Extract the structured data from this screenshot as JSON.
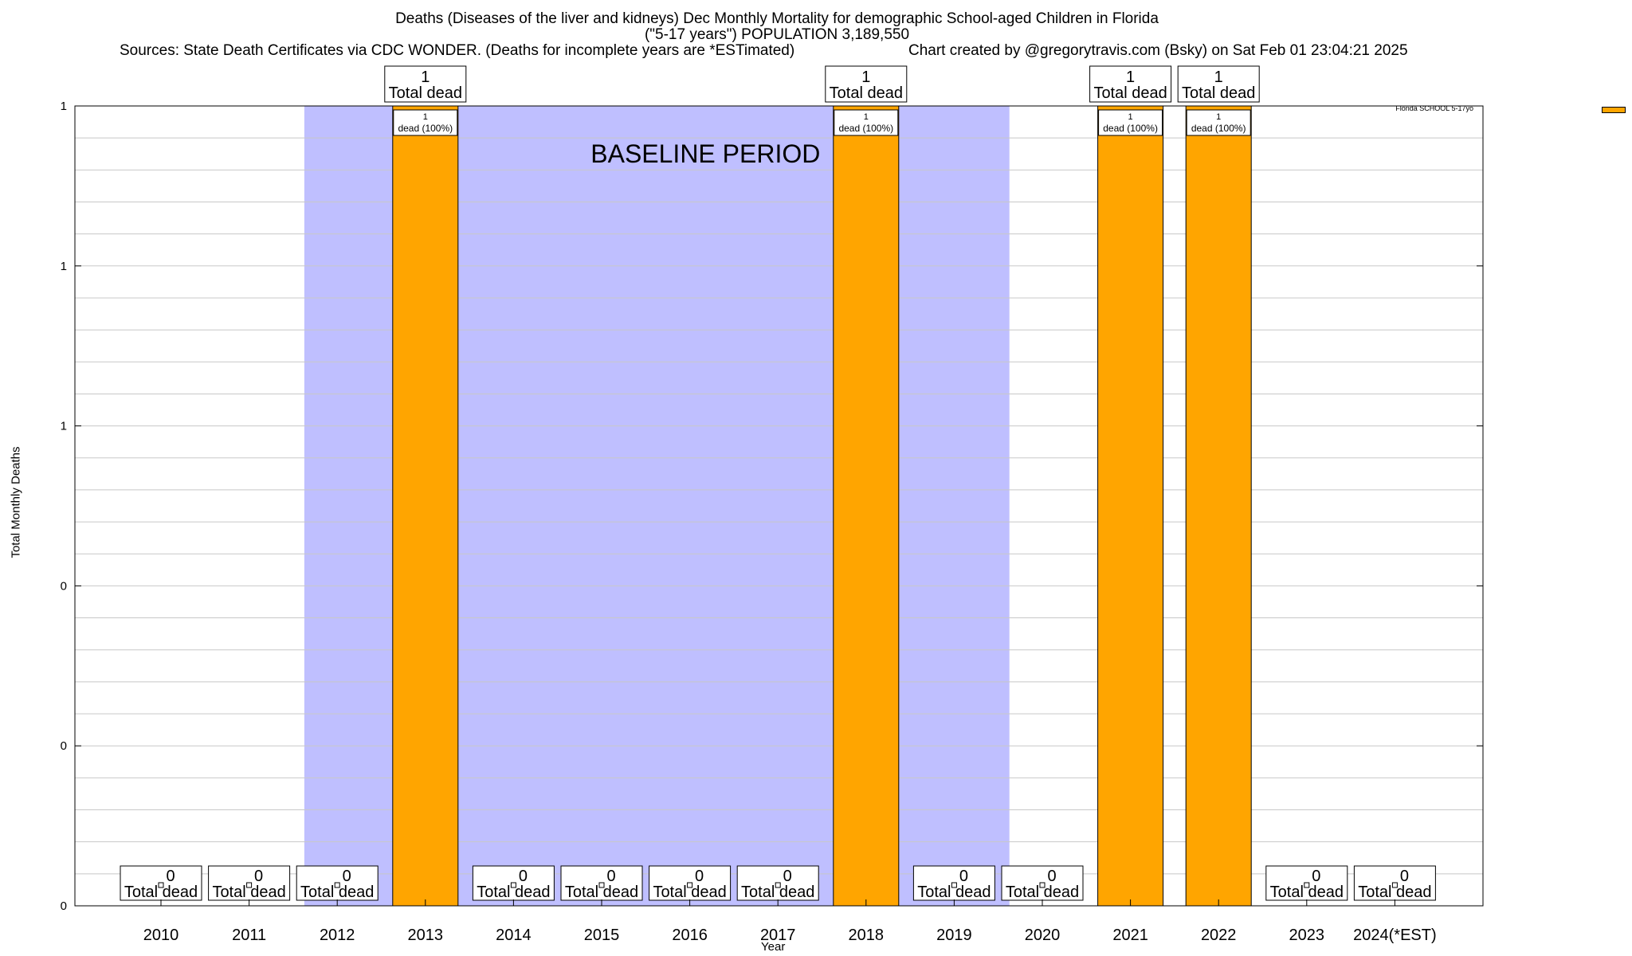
{
  "title": {
    "line1": "Deaths (Diseases of the liver and kidneys) Dec Monthly Mortality for demographic School-aged Children in Florida",
    "line2": "(\"5-17 years\") POPULATION 3,189,550",
    "sources": "Sources: State Death Certificates via CDC WONDER. (Deaths for incomplete years are *ESTimated)",
    "credit": "Chart created by @gregorytravis.com (Bsky) on Sat Feb 01 23:04:21 2025"
  },
  "chart_data": {
    "type": "bar",
    "xlabel": "Year",
    "ylabel": "Total Monthly Deaths",
    "ylim": [
      0,
      1
    ],
    "y_tick_labels": [
      "0",
      "0",
      "0",
      "1",
      "1",
      "1"
    ],
    "grid": true,
    "legend_position": "top-right",
    "categories": [
      "2010",
      "2011",
      "2012",
      "2013",
      "2014",
      "2015",
      "2016",
      "2017",
      "2018",
      "2019",
      "2020",
      "2021",
      "2022",
      "2023",
      "2024(*EST)"
    ],
    "series": [
      {
        "name": "Florida SCHOOL 5-17yo",
        "color": "#ffa500",
        "values": [
          0,
          0,
          0,
          1,
          0,
          0,
          0,
          0,
          1,
          0,
          0,
          1,
          1,
          0,
          0
        ]
      }
    ],
    "total_label_suffix": "Total dead",
    "bar_inner_label": "dead (100%)",
    "baseline_period": {
      "label": "BASELINE PERIOD",
      "from": "2012",
      "to": "2019",
      "color": "#bfbfff"
    }
  }
}
